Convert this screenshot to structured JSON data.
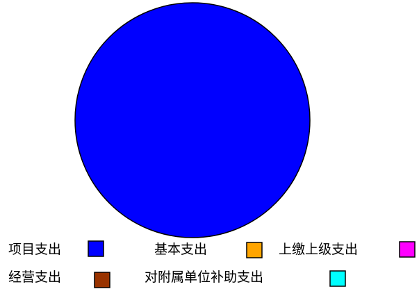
{
  "chart_data": {
    "type": "pie",
    "title": "",
    "categories": [
      "项目支出",
      "基本支出",
      "上缴上级支出",
      "经营支出",
      "对附属单位补助支出"
    ],
    "values": [
      100,
      0,
      0,
      0,
      0
    ],
    "colors": [
      "#0000FF",
      "#FFA500",
      "#FF00FF",
      "#993300",
      "#00FFFF"
    ],
    "legend_position": "bottom"
  }
}
